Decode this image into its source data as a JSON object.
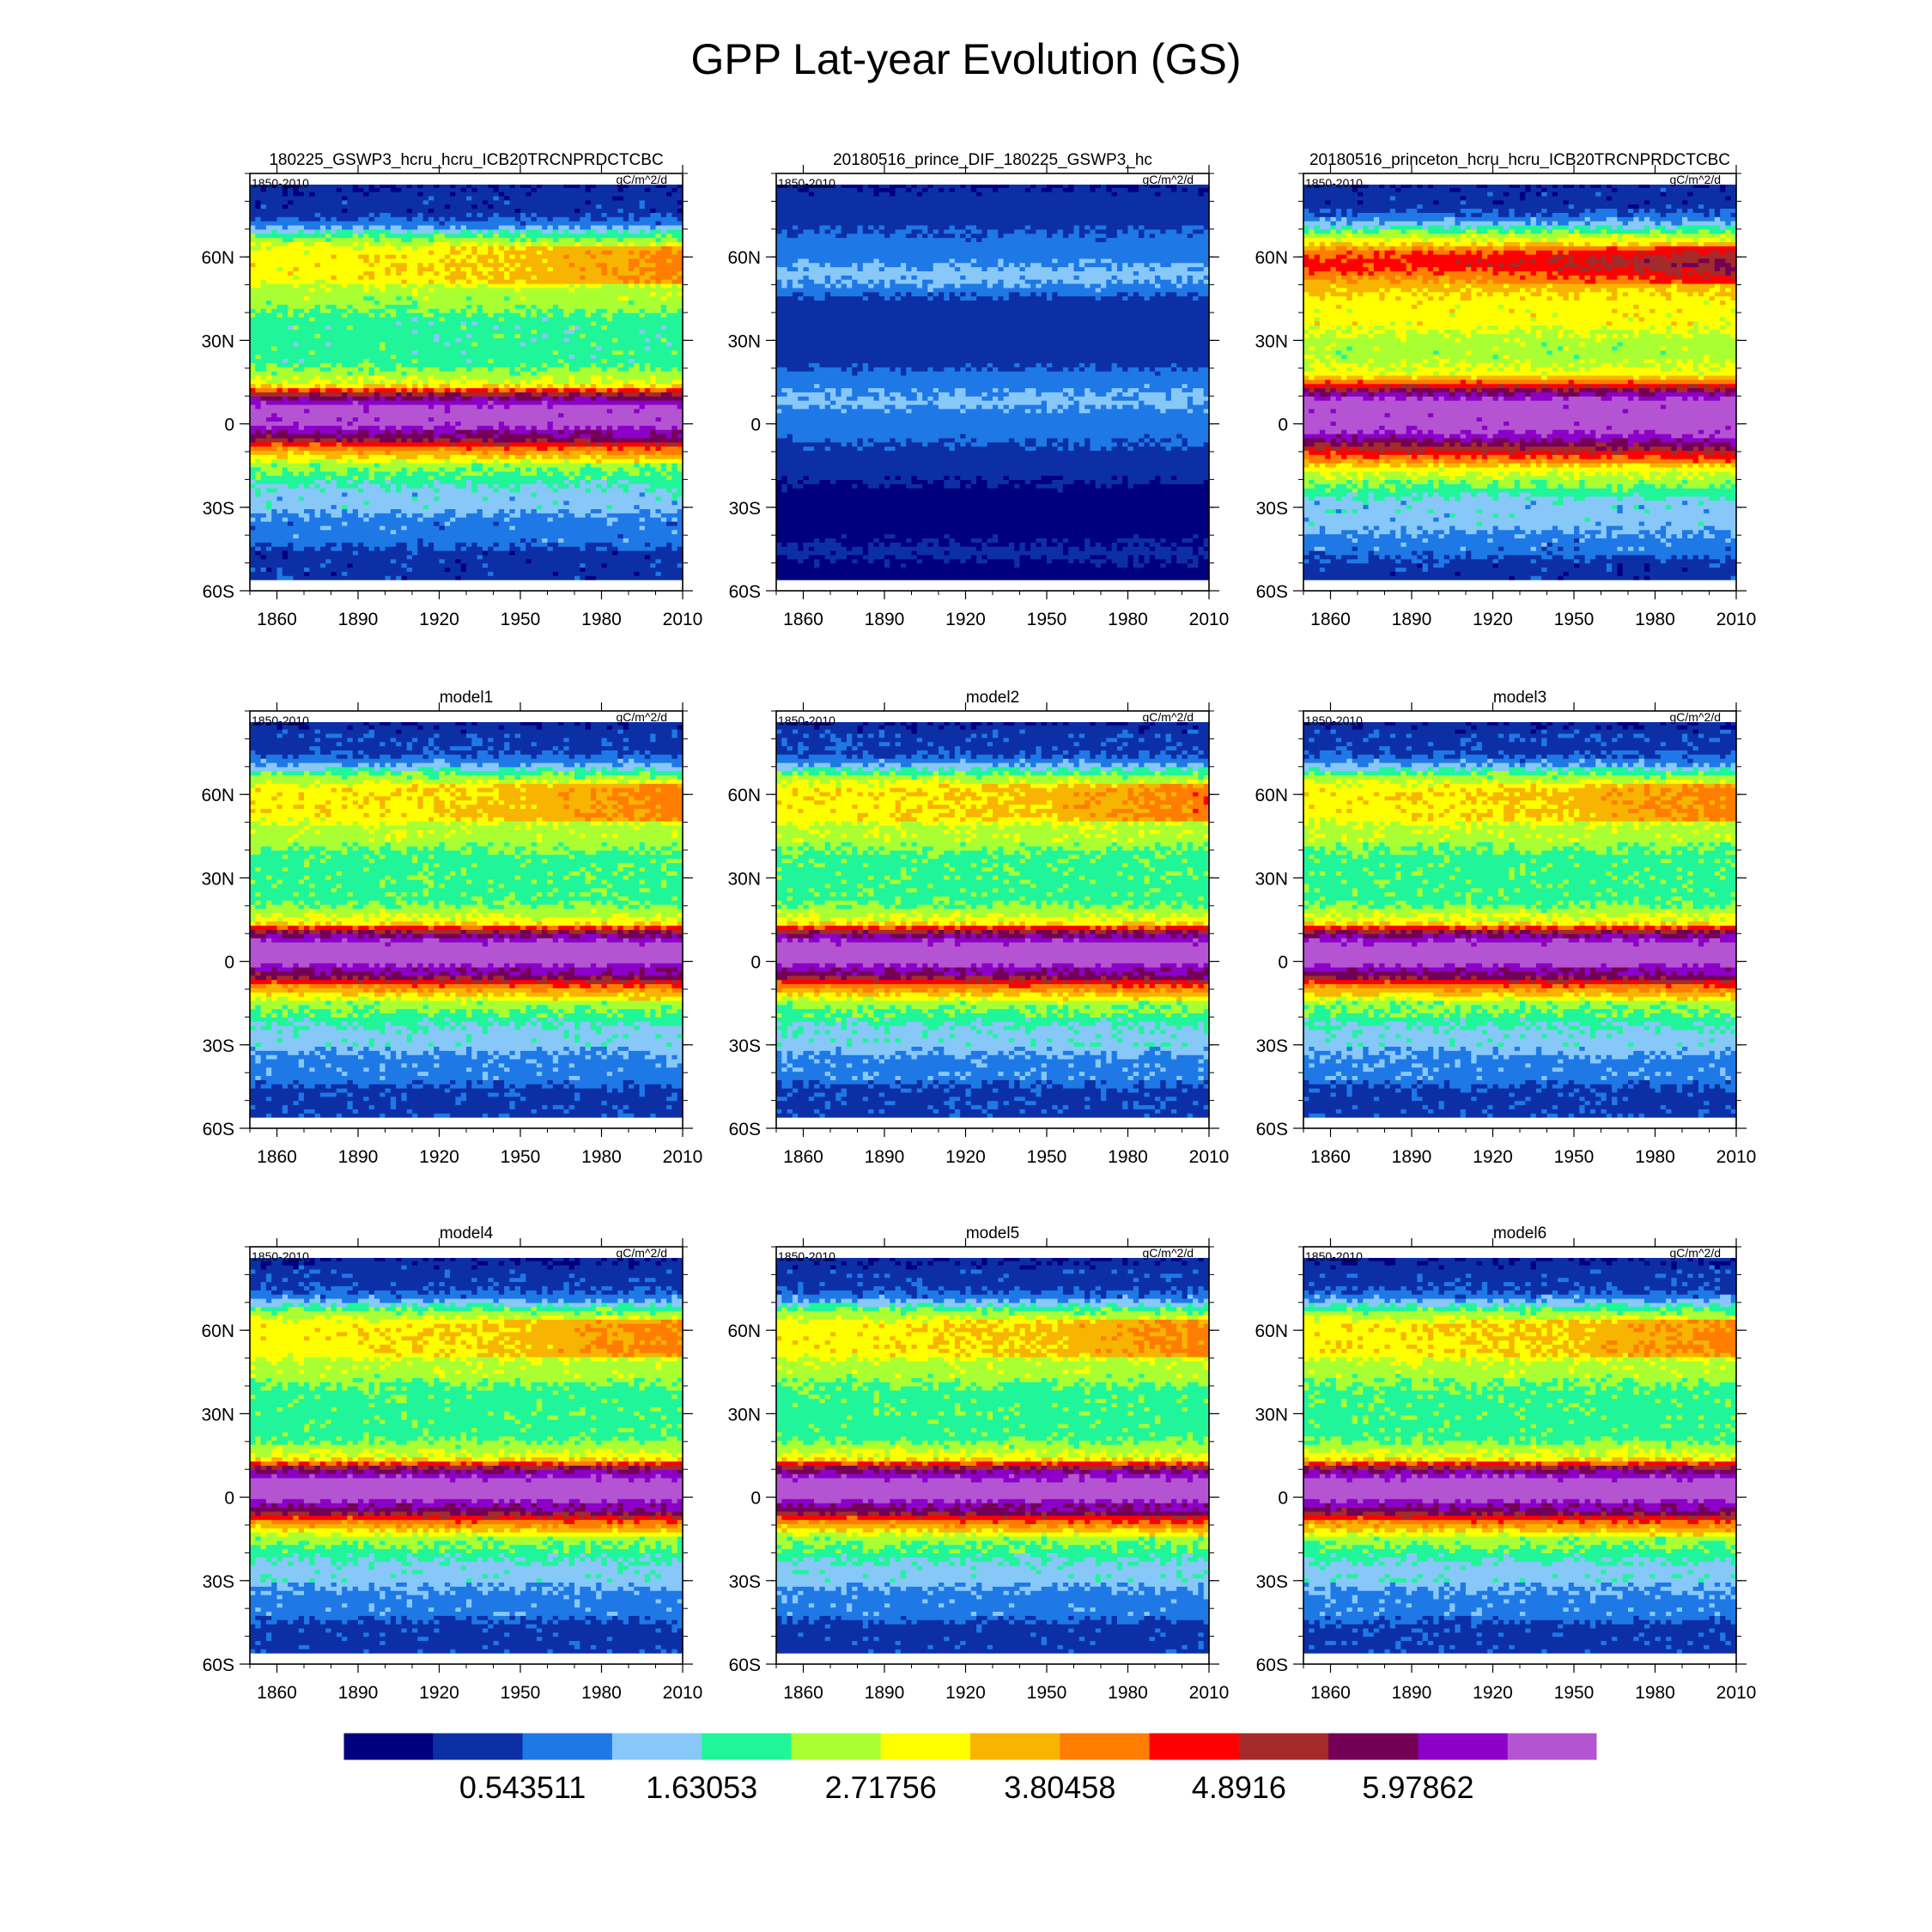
{
  "title": "GPP Lat-year Evolution (GS)",
  "chart_data": [
    {
      "type": "heatmap",
      "title": "180225_GSWP3_hcru_hcru_ICB20TRCNPRDCTCBC",
      "left_label": "1850-2010",
      "right_label": "gC/m^2/d",
      "variant": "base",
      "delta": 0,
      "xlim": [
        1850,
        2010
      ],
      "ylim": [
        -60,
        90
      ],
      "xticks": [
        "1860",
        "1890",
        "1920",
        "1950",
        "1980",
        "2010"
      ],
      "yticks": [
        "60S",
        "30S",
        "0",
        "30N",
        "60N"
      ]
    },
    {
      "type": "heatmap",
      "title": "20180516_prince_DIF_180225_GSWP3_hc",
      "left_label": "1850-2010",
      "right_label": "gC/m^2/d",
      "variant": "diff",
      "delta": 0,
      "xlim": [
        1850,
        2010
      ],
      "ylim": [
        -60,
        90
      ],
      "xticks": [
        "1860",
        "1890",
        "1920",
        "1950",
        "1980",
        "2010"
      ],
      "yticks": [
        "60S",
        "30S",
        "0",
        "30N",
        "60N"
      ]
    },
    {
      "type": "heatmap",
      "title": "20180516_princeton_hcru_hcru_ICB20TRCNPRDCTCBC",
      "left_label": "1850-2010",
      "right_label": "gC/m^2/d",
      "variant": "princeton",
      "delta": 0,
      "xlim": [
        1850,
        2010
      ],
      "ylim": [
        -60,
        90
      ],
      "xticks": [
        "1860",
        "1890",
        "1920",
        "1950",
        "1980",
        "2010"
      ],
      "yticks": [
        "60S",
        "30S",
        "0",
        "30N",
        "60N"
      ]
    },
    {
      "type": "heatmap",
      "title": "model1",
      "left_label": "1850-2010",
      "right_label": "gC/m^2/d",
      "variant": "model",
      "delta": 0.2,
      "xlim": [
        1850,
        2010
      ],
      "ylim": [
        -60,
        90
      ],
      "xticks": [
        "1860",
        "1890",
        "1920",
        "1950",
        "1980",
        "2010"
      ],
      "yticks": [
        "60S",
        "30S",
        "0",
        "30N",
        "60N"
      ]
    },
    {
      "type": "heatmap",
      "title": "model2",
      "left_label": "1850-2010",
      "right_label": "gC/m^2/d",
      "variant": "model",
      "delta": 0.25,
      "xlim": [
        1850,
        2010
      ],
      "ylim": [
        -60,
        90
      ],
      "xticks": [
        "1860",
        "1890",
        "1920",
        "1950",
        "1980",
        "2010"
      ],
      "yticks": [
        "60S",
        "30S",
        "0",
        "30N",
        "60N"
      ]
    },
    {
      "type": "heatmap",
      "title": "model3",
      "left_label": "1850-2010",
      "right_label": "gC/m^2/d",
      "variant": "model",
      "delta": 0.2,
      "xlim": [
        1850,
        2010
      ],
      "ylim": [
        -60,
        90
      ],
      "xticks": [
        "1860",
        "1890",
        "1920",
        "1950",
        "1980",
        "2010"
      ],
      "yticks": [
        "60S",
        "30S",
        "0",
        "30N",
        "60N"
      ]
    },
    {
      "type": "heatmap",
      "title": "model4",
      "left_label": "1850-2010",
      "right_label": "gC/m^2/d",
      "variant": "model",
      "delta": 0.1,
      "xlim": [
        1850,
        2010
      ],
      "ylim": [
        -60,
        90
      ],
      "xticks": [
        "1860",
        "1890",
        "1920",
        "1950",
        "1980",
        "2010"
      ],
      "yticks": [
        "60S",
        "30S",
        "0",
        "30N",
        "60N"
      ]
    },
    {
      "type": "heatmap",
      "title": "model5",
      "left_label": "1850-2010",
      "right_label": "gC/m^2/d",
      "variant": "model",
      "delta": 0.1,
      "xlim": [
        1850,
        2010
      ],
      "ylim": [
        -60,
        90
      ],
      "xticks": [
        "1860",
        "1890",
        "1920",
        "1950",
        "1980",
        "2010"
      ],
      "yticks": [
        "60S",
        "30S",
        "0",
        "30N",
        "60N"
      ]
    },
    {
      "type": "heatmap",
      "title": "model6",
      "left_label": "1850-2010",
      "right_label": "gC/m^2/d",
      "variant": "model",
      "delta": 0.15,
      "xlim": [
        1850,
        2010
      ],
      "ylim": [
        -60,
        90
      ],
      "xticks": [
        "1860",
        "1890",
        "1920",
        "1950",
        "1980",
        "2010"
      ],
      "yticks": [
        "60S",
        "30S",
        "0",
        "30N",
        "60N"
      ]
    }
  ],
  "colorbar": {
    "colors": [
      "#00007f",
      "#0d2fa6",
      "#1e78e6",
      "#87c8f8",
      "#20f59a",
      "#aaff33",
      "#ffff00",
      "#f7b400",
      "#ff7d00",
      "#ff0000",
      "#a52a2a",
      "#730055",
      "#8c00c8",
      "#b454d2"
    ],
    "labels": [
      "0.543511",
      "1.63053",
      "2.71756",
      "3.80458",
      "4.8916",
      "5.97862"
    ]
  }
}
